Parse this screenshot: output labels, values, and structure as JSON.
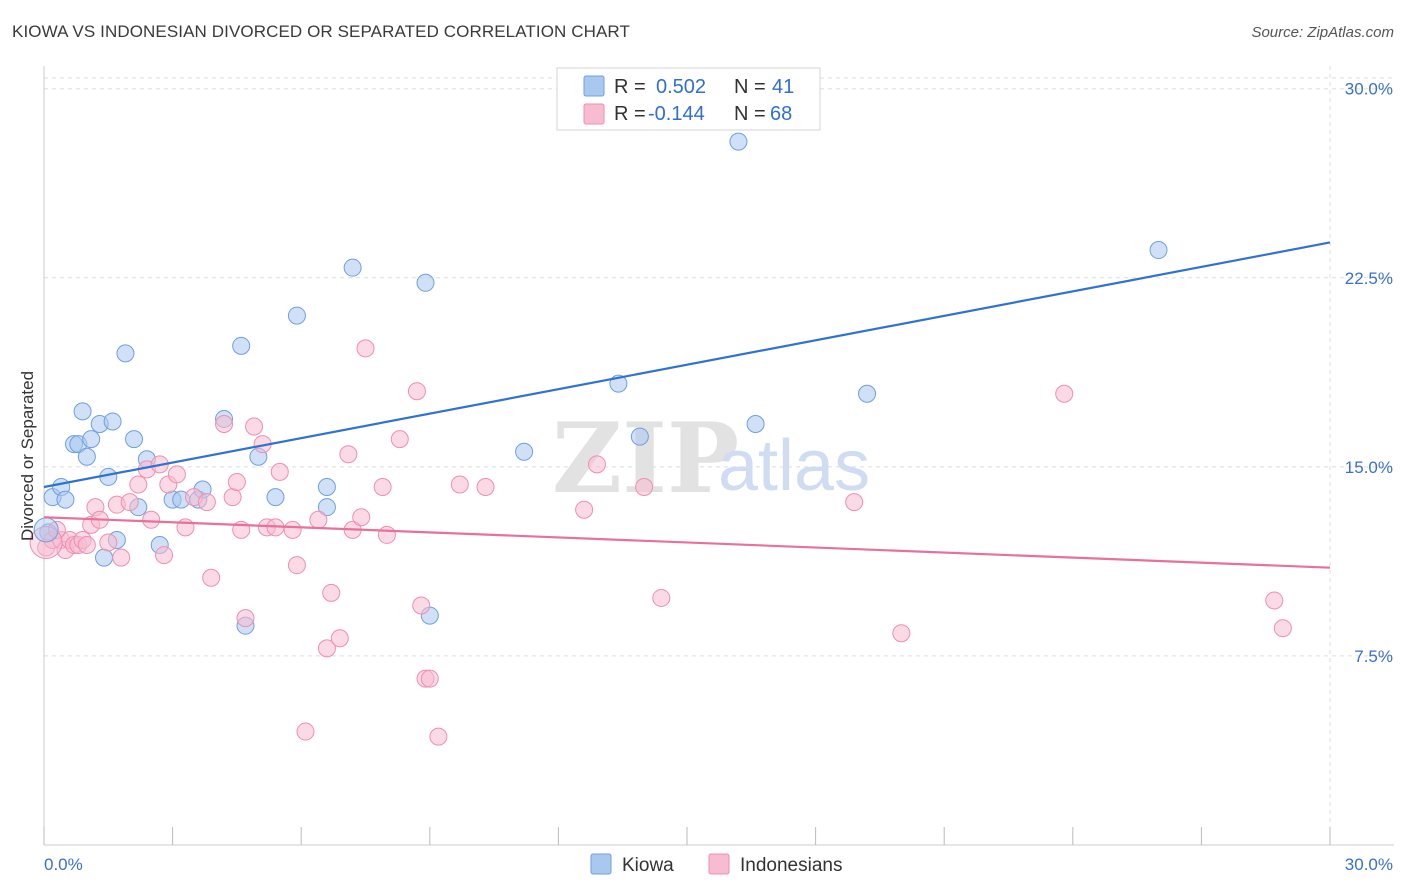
{
  "title": "KIOWA VS INDONESIAN DIVORCED OR SEPARATED CORRELATION CHART",
  "source": "Source: ZipAtlas.com",
  "watermark": {
    "zip": "ZIP",
    "atlas": "atlas"
  },
  "colors": {
    "kiowa_fill": "#a9c8f0",
    "kiowa_stroke": "#6f9fe0",
    "kiowa_line": "#2f73d2",
    "indo_fill": "#f7bcd0",
    "indo_stroke": "#ee8fb0",
    "indo_line": "#e8709a",
    "tick_label": "#3a6fcf",
    "grid": "#dddddd"
  },
  "legend": {
    "rows": [
      {
        "r_label": "R =",
        "r_value": "0.502",
        "n_label": "N =",
        "n_value": "41"
      },
      {
        "r_label": "R =",
        "r_value": "-0.144",
        "n_label": "N =",
        "n_value": "68"
      }
    ]
  },
  "bottom_legend": {
    "kiowa": "Kiowa",
    "indonesians": "Indonesians"
  },
  "chart_data": {
    "type": "scatter",
    "title": "KIOWA VS INDONESIAN DIVORCED OR SEPARATED CORRELATION CHART",
    "xlabel": "",
    "ylabel": "Divorced or Separated",
    "xlim": [
      0,
      30
    ],
    "ylim": [
      0,
      30.9
    ],
    "x_tick_labels": [
      "0.0%",
      "30.0%"
    ],
    "y_ticks": [
      7.5,
      15.0,
      22.5,
      30.0
    ],
    "y_tick_labels": [
      "7.5%",
      "15.0%",
      "22.5%",
      "30.0%"
    ],
    "grid": true,
    "legend_position": "top-center",
    "series": [
      {
        "name": "Kiowa",
        "r": 0.502,
        "n": 41,
        "trend": {
          "x": [
            0,
            30
          ],
          "y": [
            14.2,
            23.9
          ]
        },
        "points": [
          [
            0.1,
            12.4
          ],
          [
            0.2,
            13.8
          ],
          [
            0.4,
            14.2
          ],
          [
            0.5,
            13.7
          ],
          [
            0.7,
            15.9
          ],
          [
            0.8,
            15.9
          ],
          [
            0.9,
            17.2
          ],
          [
            1.0,
            15.4
          ],
          [
            1.1,
            16.1
          ],
          [
            1.3,
            16.7
          ],
          [
            1.4,
            11.4
          ],
          [
            1.5,
            14.6
          ],
          [
            1.6,
            16.8
          ],
          [
            1.7,
            12.1
          ],
          [
            1.9,
            19.5
          ],
          [
            2.1,
            16.1
          ],
          [
            2.2,
            13.4
          ],
          [
            2.4,
            15.3
          ],
          [
            2.7,
            11.9
          ],
          [
            3.0,
            13.7
          ],
          [
            3.2,
            13.7
          ],
          [
            3.6,
            13.7
          ],
          [
            3.7,
            14.1
          ],
          [
            4.2,
            16.9
          ],
          [
            4.6,
            19.8
          ],
          [
            4.7,
            8.7
          ],
          [
            5.0,
            15.4
          ],
          [
            5.4,
            13.8
          ],
          [
            5.9,
            21.0
          ],
          [
            6.6,
            13.4
          ],
          [
            6.6,
            14.2
          ],
          [
            7.2,
            22.9
          ],
          [
            8.9,
            22.3
          ],
          [
            9.0,
            9.1
          ],
          [
            11.2,
            15.6
          ],
          [
            13.4,
            18.3
          ],
          [
            13.9,
            16.2
          ],
          [
            16.2,
            27.9
          ],
          [
            16.6,
            16.7
          ],
          [
            19.2,
            17.9
          ],
          [
            26.0,
            23.6
          ]
        ]
      },
      {
        "name": "Indonesians",
        "r": -0.144,
        "n": 68,
        "trend": {
          "x": [
            0,
            30
          ],
          "y": [
            13.0,
            11.0
          ]
        },
        "points": [
          [
            0.05,
            11.8
          ],
          [
            0.2,
            12.1
          ],
          [
            0.4,
            12.1
          ],
          [
            0.5,
            11.7
          ],
          [
            0.6,
            12.1
          ],
          [
            0.7,
            11.9
          ],
          [
            0.8,
            11.9
          ],
          [
            0.9,
            12.1
          ],
          [
            1.0,
            11.9
          ],
          [
            1.1,
            12.7
          ],
          [
            1.2,
            13.4
          ],
          [
            1.3,
            12.9
          ],
          [
            1.5,
            12.0
          ],
          [
            1.7,
            13.5
          ],
          [
            1.8,
            11.4
          ],
          [
            2.0,
            13.6
          ],
          [
            2.2,
            14.3
          ],
          [
            2.4,
            14.9
          ],
          [
            2.5,
            12.9
          ],
          [
            2.7,
            15.1
          ],
          [
            2.8,
            11.5
          ],
          [
            2.9,
            14.3
          ],
          [
            3.1,
            14.7
          ],
          [
            3.3,
            12.6
          ],
          [
            3.5,
            13.8
          ],
          [
            3.8,
            13.6
          ],
          [
            3.9,
            10.6
          ],
          [
            4.2,
            16.7
          ],
          [
            4.4,
            13.8
          ],
          [
            4.5,
            14.4
          ],
          [
            4.6,
            12.5
          ],
          [
            4.7,
            9.0
          ],
          [
            4.9,
            16.6
          ],
          [
            5.1,
            15.9
          ],
          [
            5.2,
            12.6
          ],
          [
            5.4,
            12.6
          ],
          [
            5.5,
            14.8
          ],
          [
            5.8,
            12.5
          ],
          [
            5.9,
            11.1
          ],
          [
            6.1,
            4.5
          ],
          [
            6.4,
            12.9
          ],
          [
            6.6,
            7.8
          ],
          [
            6.7,
            10.0
          ],
          [
            6.9,
            8.2
          ],
          [
            7.1,
            15.5
          ],
          [
            7.2,
            12.5
          ],
          [
            7.4,
            13.0
          ],
          [
            7.5,
            19.7
          ],
          [
            7.9,
            14.2
          ],
          [
            8.0,
            12.3
          ],
          [
            8.3,
            16.1
          ],
          [
            8.7,
            18.0
          ],
          [
            8.8,
            9.5
          ],
          [
            8.9,
            6.6
          ],
          [
            9.0,
            6.6
          ],
          [
            9.2,
            4.3
          ],
          [
            9.7,
            14.3
          ],
          [
            10.3,
            14.2
          ],
          [
            12.6,
            13.3
          ],
          [
            12.9,
            15.1
          ],
          [
            14.0,
            14.2
          ],
          [
            14.4,
            9.8
          ],
          [
            18.9,
            13.6
          ],
          [
            20.0,
            8.4
          ],
          [
            23.8,
            17.9
          ],
          [
            28.7,
            9.7
          ],
          [
            28.9,
            8.6
          ],
          [
            0.3,
            12.5
          ]
        ]
      }
    ]
  }
}
